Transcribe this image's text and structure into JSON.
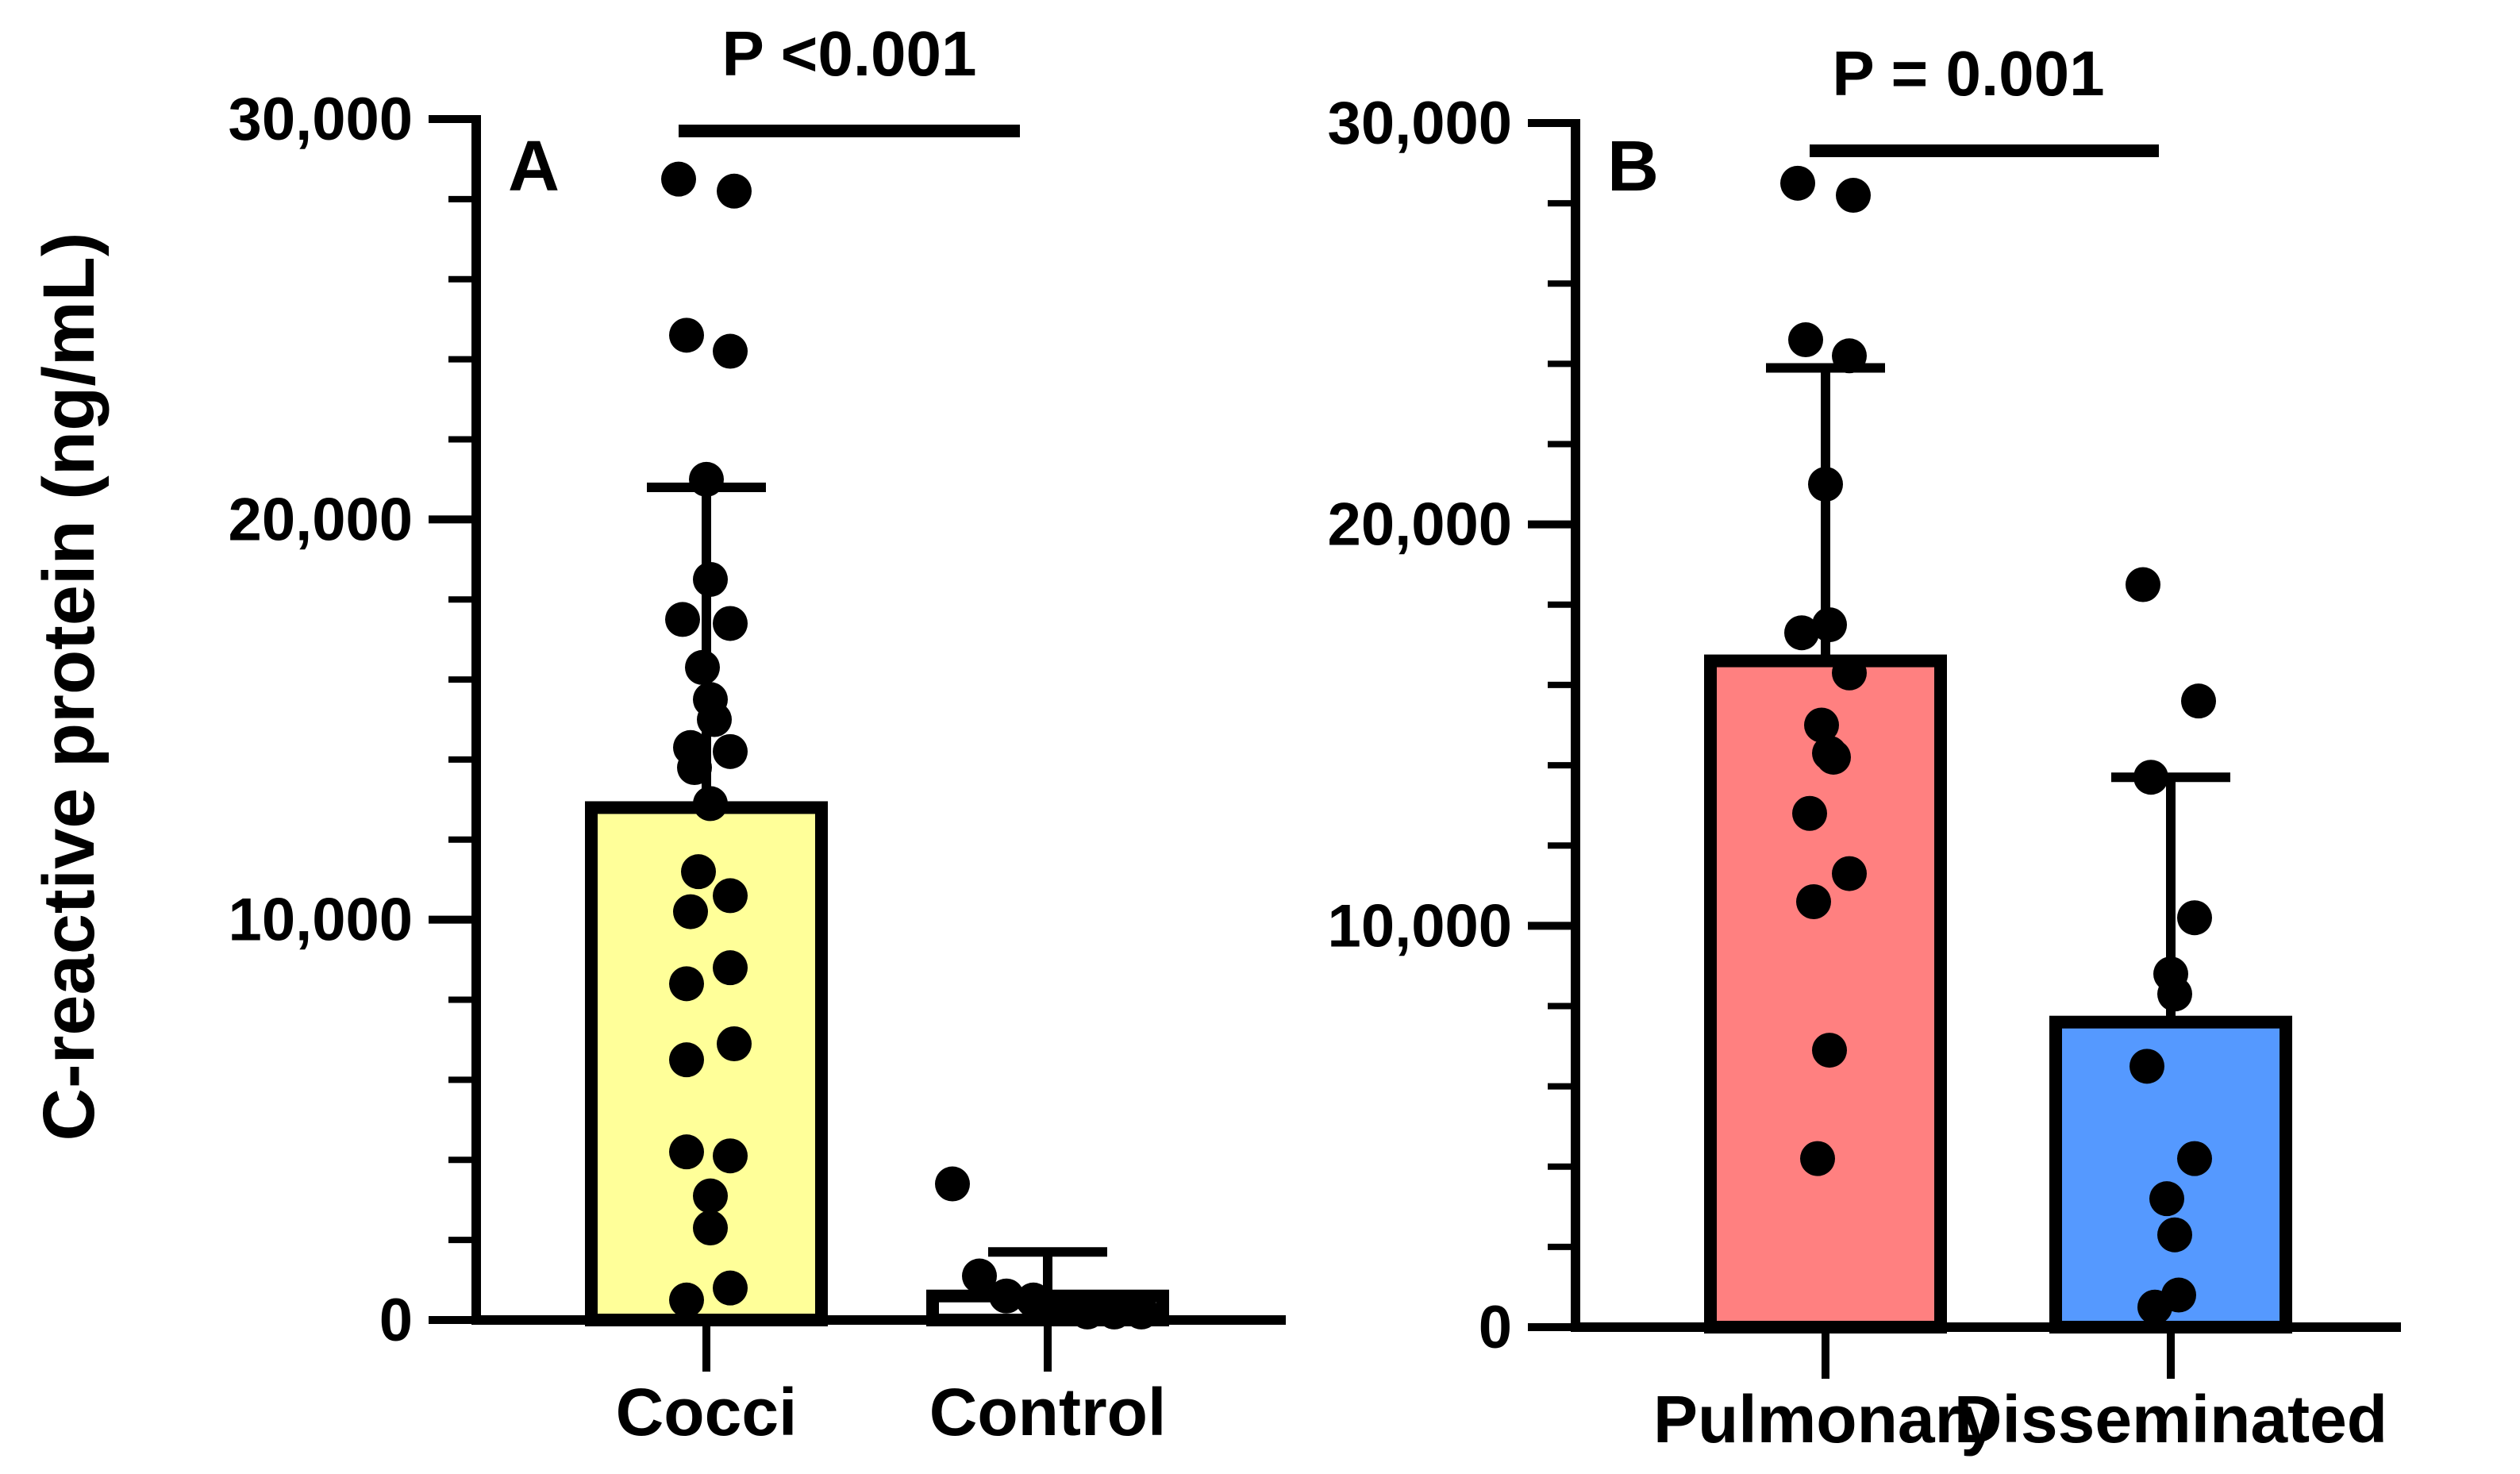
{
  "y_axis_label": "C-reactive protein (ng/mL)",
  "chart_data": [
    {
      "type": "bar",
      "panel_label": "A",
      "significance_label": "P <0.001",
      "ylabel": "C-reactive protein (ng/mL)",
      "ylim": [
        0,
        30000
      ],
      "y_tick_labels": [
        "0",
        "10,000",
        "20,000",
        "30,000"
      ],
      "y_tick_values": [
        0,
        10000,
        20000,
        30000
      ],
      "categories": [
        "Cocci",
        "Control"
      ],
      "bar_colors": [
        "#ffff99",
        "#ffffff"
      ],
      "means": [
        12800,
        600
      ],
      "error_upper": [
        20800,
        1700
      ],
      "points": [
        [
          28500,
          28200,
          24600,
          24200,
          21000,
          18500,
          17500,
          17400,
          16300,
          15500,
          15000,
          14300,
          14200,
          13800,
          12900,
          11200,
          10600,
          10200,
          8800,
          8400,
          6900,
          6500,
          4200,
          4100,
          3100,
          2300,
          800,
          500
        ],
        [
          3400,
          1100,
          600,
          500,
          300,
          200,
          200,
          200
        ]
      ],
      "grid": false
    },
    {
      "type": "bar",
      "panel_label": "B",
      "significance_label": "P = 0.001",
      "ylim": [
        0,
        30000
      ],
      "y_tick_labels": [
        "0",
        "10,000",
        "20,000",
        "30,000"
      ],
      "y_tick_values": [
        0,
        10000,
        20000,
        30000
      ],
      "categories": [
        "Pulmonary",
        "Disseminated"
      ],
      "bar_colors": [
        "#ff8080",
        "#5599ff"
      ],
      "means": [
        16600,
        7600
      ],
      "error_upper": [
        23900,
        13700
      ],
      "points": [
        [
          28500,
          28200,
          24600,
          24200,
          21000,
          17500,
          17300,
          16300,
          15000,
          14300,
          14200,
          12800,
          11300,
          10600,
          6900,
          4200
        ],
        [
          18500,
          15600,
          13700,
          10200,
          8800,
          8300,
          6500,
          4200,
          3200,
          2300,
          800,
          500
        ]
      ],
      "grid": false
    }
  ]
}
